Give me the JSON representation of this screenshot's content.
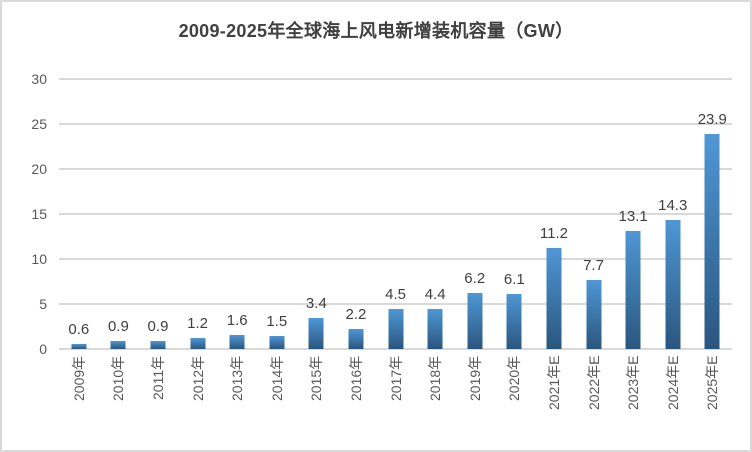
{
  "chart_data": {
    "type": "bar",
    "title": "2009-2025年全球海上风电新增装机容量（GW）",
    "categories": [
      "2009年",
      "2010年",
      "2011年",
      "2012年",
      "2013年",
      "2014年",
      "2015年",
      "2016年",
      "2017年",
      "2018年",
      "2019年",
      "2020年",
      "2021年E",
      "2022年E",
      "2023年E",
      "2024年E",
      "2025年E"
    ],
    "values": [
      0.6,
      0.9,
      0.9,
      1.2,
      1.6,
      1.5,
      3.4,
      2.2,
      4.5,
      4.4,
      6.2,
      6.1,
      11.2,
      7.7,
      13.1,
      14.3,
      23.9
    ],
    "value_labels": [
      "0.6",
      "0.9",
      "0.9",
      "1.2",
      "1.6",
      "1.5",
      "3.4",
      "2.2",
      "4.5",
      "4.4",
      "6.2",
      "6.1",
      "11.2",
      "7.7",
      "13.1",
      "14.3",
      "23.9"
    ],
    "xlabel": "",
    "ylabel": "",
    "ylim": [
      0,
      30
    ],
    "yticks": [
      0,
      5,
      10,
      15,
      20,
      25,
      30
    ],
    "grid": true,
    "legend_position": "none",
    "colors": {
      "bar_gradient_top": "#4f97d5",
      "bar_gradient_bottom": "#2a567e",
      "gridline": "#d9d9d9",
      "frame_border": "#d9d9d9",
      "title_text": "#404040",
      "value_label_text": "#404040",
      "axis_tick_text": "#595959",
      "background": "#ffffff"
    }
  }
}
